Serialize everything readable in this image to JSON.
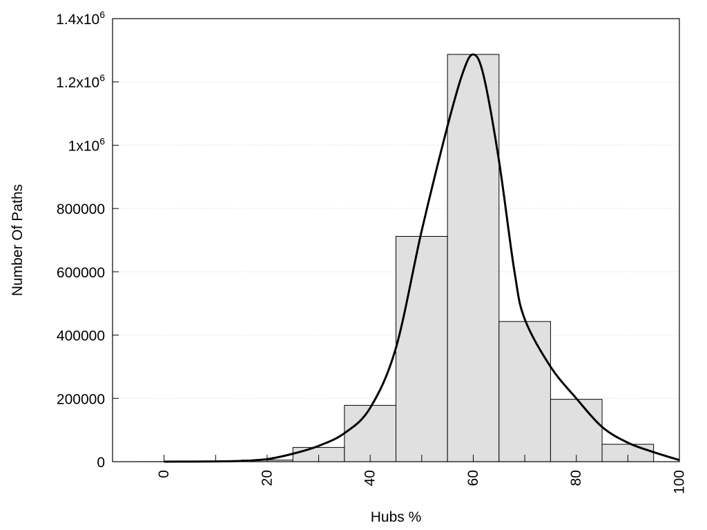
{
  "chart_data": {
    "type": "bar",
    "xlabel": "Hubs %",
    "ylabel": "Number Of Paths",
    "xlim": [
      -10,
      100
    ],
    "ylim": [
      0,
      1400000
    ],
    "x_ticks": [
      {
        "value": 0,
        "label": "0"
      },
      {
        "value": 20,
        "label": "20"
      },
      {
        "value": 40,
        "label": "40"
      },
      {
        "value": 60,
        "label": "60"
      },
      {
        "value": 80,
        "label": "80"
      },
      {
        "value": 100,
        "label": "100"
      }
    ],
    "y_ticks": [
      {
        "value": 0,
        "label": "0",
        "sup": ""
      },
      {
        "value": 200000,
        "label": "200000",
        "sup": ""
      },
      {
        "value": 400000,
        "label": "400000",
        "sup": ""
      },
      {
        "value": 600000,
        "label": "600000",
        "sup": ""
      },
      {
        "value": 800000,
        "label": "800000",
        "sup": ""
      },
      {
        "value": 1000000,
        "label": "1x10",
        "sup": "6"
      },
      {
        "value": 1200000,
        "label": "1.2x10",
        "sup": "6"
      },
      {
        "value": 1400000,
        "label": "1.4x10",
        "sup": "6"
      }
    ],
    "bin_width": 10,
    "bins": [
      0,
      10,
      20,
      30,
      40,
      50,
      60,
      70,
      80,
      90
    ],
    "values": [
      200,
      1000,
      5000,
      45000,
      178000,
      712000,
      1287000,
      443000,
      197000,
      55000
    ],
    "bar_color": "#e0e0e0",
    "curve": {
      "x": [
        0,
        10,
        15,
        20,
        25,
        30,
        35,
        40,
        45,
        50,
        55,
        58,
        60,
        62,
        65,
        68,
        70,
        75,
        80,
        85,
        90,
        95,
        100
      ],
      "y": [
        0,
        800,
        2500,
        8000,
        25000,
        50000,
        90000,
        170000,
        360000,
        730000,
        1060000,
        1230000,
        1287000,
        1220000,
        950000,
        600000,
        450000,
        300000,
        200000,
        110000,
        60000,
        30000,
        5000
      ]
    },
    "grid": "horizontal dotted",
    "legend": "none"
  }
}
